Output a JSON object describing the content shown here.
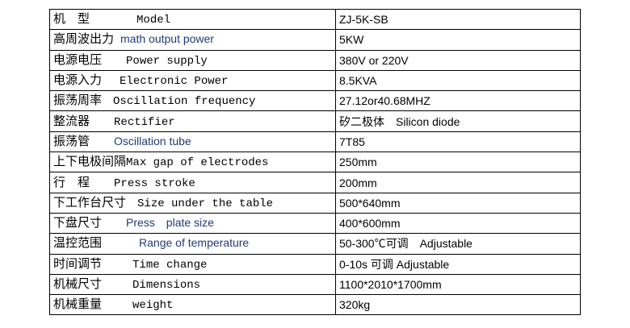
{
  "rows": [
    {
      "zh": "机　型",
      "en": "Model",
      "blue": false,
      "value": "ZJ-5K-SB"
    },
    {
      "zh": "高周波出力",
      "en": "math output power",
      "blue": true,
      "value": "5KW"
    },
    {
      "zh": "电源电压",
      "en": "Power supply",
      "blue": false,
      "value": "380V or 220V"
    },
    {
      "zh": "电源入力",
      "en": "Electronic Power",
      "blue": false,
      "value": "8.5KVA"
    },
    {
      "zh": "振荡周率",
      "en": "Oscillation frequency",
      "blue": false,
      "value": "27.12or40.68MHZ"
    },
    {
      "zh": "整流器",
      "en": "Rectifier",
      "blue": false,
      "value": "矽二极体　Silicon diode"
    },
    {
      "zh": "振荡管",
      "en": "Oscillation tube",
      "blue": true,
      "value": "7T85"
    },
    {
      "zh": "上下电极间隔",
      "en": "Max gap of electrodes",
      "blue": false,
      "value": "250mm"
    },
    {
      "zh": "行　程",
      "en": "Press stroke",
      "blue": false,
      "value": "200mm"
    },
    {
      "zh": "下工作台尺寸",
      "en": "Size under the table",
      "blue": false,
      "value": "500*640mm"
    },
    {
      "zh": "下盘尺寸",
      "en": "Press　plate size",
      "blue": true,
      "value": "400*600mm"
    },
    {
      "zh": "温控范围",
      "en": "Range of temperature",
      "blue": true,
      "value": "50-300℃可调　Adjustable"
    },
    {
      "zh": "时间调节",
      "en": "Time change",
      "blue": false,
      "value": "0-10s 可调 Adjustable"
    },
    {
      "zh": "机械尺寸",
      "en": "Dimensions",
      "blue": false,
      "value": "1100*2010*1700mm"
    },
    {
      "zh": "机械重量",
      "en": "weight",
      "blue": false,
      "value": "320kg"
    }
  ]
}
